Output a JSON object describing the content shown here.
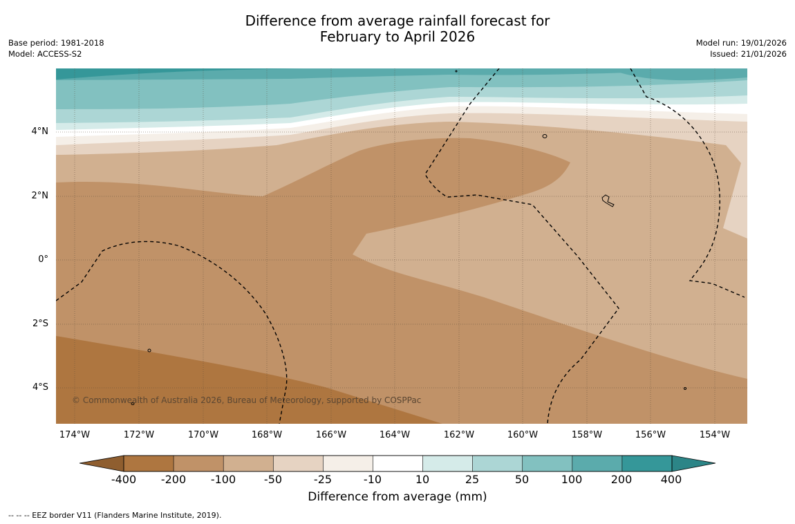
{
  "title_line1": "Difference from average rainfall forecast for",
  "title_line2": "February to April 2026",
  "base_period": "Base period: 1981-2018",
  "model": "Model: ACCESS-S2",
  "model_run": "Model run: 19/01/2026",
  "issued": "Issued: 21/01/2026",
  "latitude_labels": [
    "4°N",
    "2°N",
    "0°",
    "2°S",
    "4°S"
  ],
  "longitude_labels": [
    "174°W",
    "172°W",
    "170°W",
    "168°W",
    "166°W",
    "164°W",
    "162°W",
    "160°W",
    "158°W",
    "156°W",
    "154°W"
  ],
  "colorbar": {
    "ticks": [
      "-400",
      "-200",
      "-100",
      "-50",
      "-25",
      "-10",
      "10",
      "25",
      "50",
      "100",
      "200",
      "400"
    ],
    "colors": [
      "#ae7640",
      "#c09268",
      "#d1b090",
      "#e6d3c2",
      "#f5efe8",
      "#ffffff",
      "#d5ebe9",
      "#acd6d5",
      "#82c1c0",
      "#5babac",
      "#359799"
    ],
    "title": "Difference from average (mm)"
  },
  "copyright": "© Commonwealth of Australia 2026, Bureau of Meteorology, supported by COSPPac",
  "legend_note": "-- -- -- EEZ border V11 (Flanders Marine Institute, 2019)."
}
